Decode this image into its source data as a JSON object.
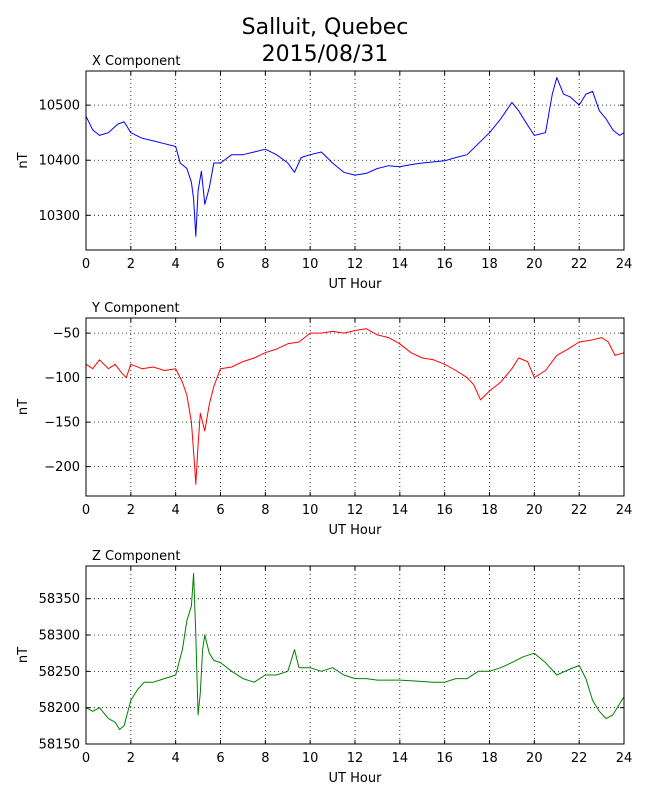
{
  "title_line1": "Salluit, Quebec",
  "title_line2": "2015/08/31",
  "chart_data": [
    {
      "type": "line",
      "title": "X Component",
      "xlabel": "UT Hour",
      "ylabel": "nT",
      "xlim": [
        0,
        24
      ],
      "ylim": [
        10237,
        10562
      ],
      "xticks": [
        0,
        2,
        4,
        6,
        8,
        10,
        12,
        14,
        16,
        18,
        20,
        22,
        24
      ],
      "yticks": [
        10300,
        10400,
        10500
      ],
      "grid": true,
      "color": "#0000ff",
      "series": [
        {
          "x": [
            0,
            0.3,
            0.6,
            1.0,
            1.4,
            1.7,
            2.0,
            2.5,
            3.0,
            3.5,
            4.0,
            4.2,
            4.5,
            4.7,
            4.8,
            4.9,
            5.0,
            5.15,
            5.3,
            5.5,
            5.7,
            6.0,
            6.5,
            7.0,
            7.5,
            8.0,
            8.5,
            9.0,
            9.3,
            9.6,
            10.0,
            10.5,
            11.0,
            11.5,
            12.0,
            12.5,
            13.0,
            13.5,
            14.0,
            14.5,
            15.0,
            15.5,
            16.0,
            16.5,
            17.0,
            17.5,
            18.0,
            18.5,
            19.0,
            19.3,
            19.6,
            20.0,
            20.5,
            20.8,
            21.0,
            21.3,
            21.6,
            22.0,
            22.3,
            22.6,
            22.9,
            23.2,
            23.5,
            23.8,
            24.0
          ],
          "y": [
            10480,
            10455,
            10445,
            10450,
            10465,
            10470,
            10450,
            10440,
            10435,
            10430,
            10425,
            10395,
            10385,
            10360,
            10330,
            10262,
            10345,
            10380,
            10320,
            10350,
            10395,
            10395,
            10410,
            10410,
            10415,
            10420,
            10410,
            10395,
            10378,
            10405,
            10410,
            10415,
            10395,
            10378,
            10373,
            10376,
            10385,
            10390,
            10388,
            10392,
            10395,
            10397,
            10399,
            10405,
            10410,
            10430,
            10450,
            10475,
            10505,
            10490,
            10470,
            10445,
            10450,
            10520,
            10550,
            10520,
            10515,
            10500,
            10520,
            10525,
            10490,
            10475,
            10455,
            10445,
            10450
          ]
        }
      ]
    },
    {
      "type": "line",
      "title": "Y Component",
      "xlabel": "UT Hour",
      "ylabel": "nT",
      "xlim": [
        0,
        24
      ],
      "ylim": [
        -233,
        -33
      ],
      "xticks": [
        0,
        2,
        4,
        6,
        8,
        10,
        12,
        14,
        16,
        18,
        20,
        22,
        24
      ],
      "yticks": [
        -200,
        -150,
        -100,
        -50
      ],
      "grid": true,
      "color": "#ff0000",
      "series": [
        {
          "x": [
            0,
            0.3,
            0.6,
            1.0,
            1.3,
            1.6,
            1.8,
            2.0,
            2.5,
            3.0,
            3.5,
            4.0,
            4.3,
            4.5,
            4.7,
            4.85,
            4.9,
            5.0,
            5.1,
            5.3,
            5.5,
            5.7,
            6.0,
            6.5,
            7.0,
            7.5,
            8.0,
            8.5,
            9.0,
            9.5,
            10.0,
            10.5,
            11.0,
            11.5,
            12.0,
            12.5,
            13.0,
            13.5,
            14.0,
            14.5,
            15.0,
            15.5,
            16.0,
            16.5,
            17.0,
            17.3,
            17.6,
            18.0,
            18.5,
            19.0,
            19.3,
            19.7,
            20.0,
            20.5,
            21.0,
            21.5,
            22.0,
            22.5,
            23.0,
            23.3,
            23.6,
            24.0
          ],
          "y": [
            -85,
            -90,
            -80,
            -90,
            -85,
            -95,
            -100,
            -85,
            -90,
            -88,
            -92,
            -90,
            -105,
            -120,
            -150,
            -200,
            -220,
            -175,
            -140,
            -160,
            -130,
            -110,
            -90,
            -88,
            -82,
            -78,
            -72,
            -68,
            -62,
            -60,
            -50,
            -50,
            -48,
            -50,
            -47,
            -45,
            -52,
            -55,
            -62,
            -72,
            -78,
            -80,
            -85,
            -92,
            -100,
            -108,
            -125,
            -115,
            -105,
            -90,
            -78,
            -82,
            -100,
            -92,
            -75,
            -68,
            -60,
            -58,
            -55,
            -60,
            -75,
            -72
          ]
        }
      ]
    },
    {
      "type": "line",
      "title": "Z Component",
      "xlabel": "UT Hour",
      "ylabel": "nT",
      "xlim": [
        0,
        24
      ],
      "ylim": [
        58150,
        58395
      ],
      "xticks": [
        0,
        2,
        4,
        6,
        8,
        10,
        12,
        14,
        16,
        18,
        20,
        22,
        24
      ],
      "yticks": [
        58150,
        58200,
        58250,
        58300,
        58350
      ],
      "grid": true,
      "color": "#008000",
      "series": [
        {
          "x": [
            0,
            0.3,
            0.6,
            1.0,
            1.3,
            1.5,
            1.7,
            2.0,
            2.3,
            2.6,
            3.0,
            3.5,
            4.0,
            4.3,
            4.5,
            4.7,
            4.8,
            4.9,
            5.0,
            5.1,
            5.2,
            5.3,
            5.5,
            5.7,
            6.0,
            6.5,
            7.0,
            7.5,
            8.0,
            8.5,
            9.0,
            9.3,
            9.5,
            10.0,
            10.5,
            11.0,
            11.5,
            12.0,
            12.5,
            13.0,
            13.5,
            14.0,
            14.5,
            15.0,
            15.5,
            16.0,
            16.5,
            17.0,
            17.5,
            18.0,
            18.5,
            19.0,
            19.5,
            20.0,
            20.5,
            21.0,
            21.5,
            22.0,
            22.3,
            22.6,
            22.9,
            23.2,
            23.5,
            23.8,
            24.0
          ],
          "y": [
            58200,
            58195,
            58200,
            58185,
            58180,
            58170,
            58175,
            58210,
            58225,
            58235,
            58235,
            58240,
            58245,
            58280,
            58320,
            58340,
            58385,
            58300,
            58190,
            58220,
            58280,
            58300,
            58275,
            58265,
            58262,
            58250,
            58240,
            58235,
            58245,
            58245,
            58250,
            58280,
            58255,
            58255,
            58250,
            58255,
            58245,
            58240,
            58240,
            58238,
            58238,
            58238,
            58237,
            58236,
            58235,
            58235,
            58240,
            58240,
            58250,
            58250,
            58255,
            58262,
            58270,
            58275,
            58262,
            58245,
            58252,
            58258,
            58240,
            58210,
            58195,
            58185,
            58190,
            58205,
            58215
          ]
        }
      ]
    }
  ]
}
